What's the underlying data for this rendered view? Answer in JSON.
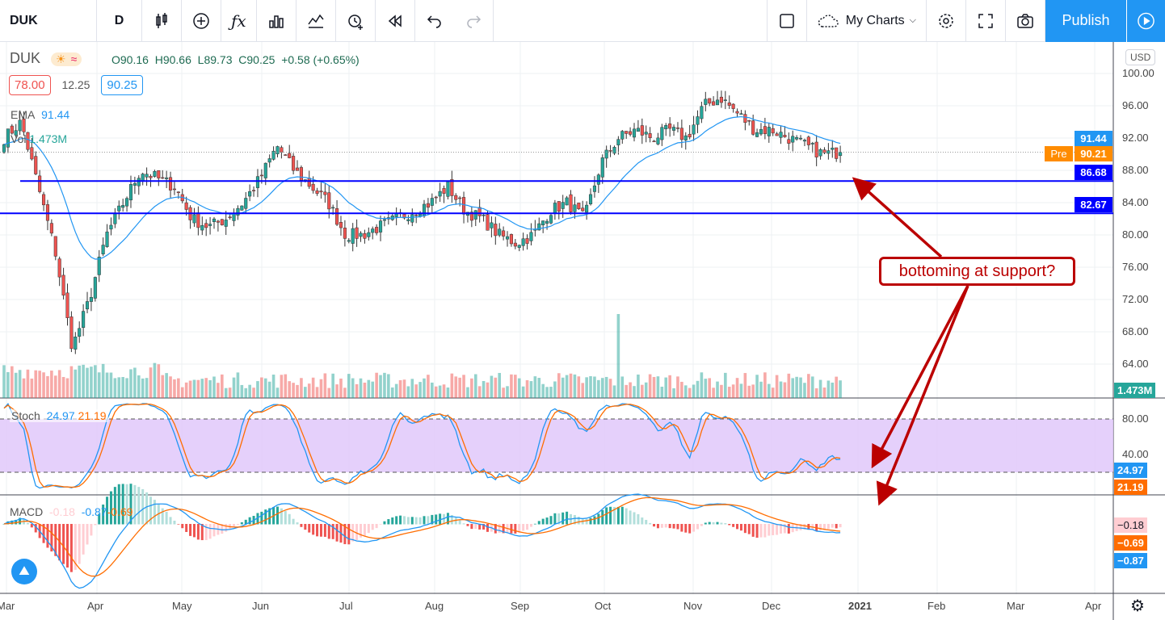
{
  "toolbar": {
    "symbol": "DUK",
    "interval": "D",
    "my_charts": "My Charts",
    "publish": "Publish",
    "icons": [
      "candles-icon",
      "add-compare-icon",
      "indicators-icon",
      "templates-icon",
      "financials-icon",
      "alert-icon",
      "replay-icon",
      "undo-icon",
      "redo-icon",
      "layout-icon",
      "cloud-icon",
      "gear-icon",
      "fullscreen-icon",
      "camera-icon",
      "play-icon"
    ]
  },
  "legend": {
    "symbol": "DUK",
    "o": "O90.16",
    "h": "H90.66",
    "l": "L89.73",
    "c": "C90.25",
    "chg": "+0.58 (+0.65%)",
    "bid": "78.00",
    "spread": "12.25",
    "ask": "90.25",
    "ema_label": "EMA",
    "ema_value": "91.44",
    "vol_label": "Vol",
    "vol_value": "1.473M"
  },
  "stoch": {
    "label": "Stoch",
    "k": "24.97",
    "d": "21.19"
  },
  "macd": {
    "label": "MACD",
    "hist": "-0.18",
    "macd": "-0.87",
    "signal": "-0.69"
  },
  "price_axis": {
    "currency": "USD",
    "ticks": [
      "100.00",
      "96.00",
      "92.00",
      "88.00",
      "84.00",
      "80.00",
      "76.00",
      "72.00",
      "68.00",
      "64.00"
    ],
    "ema_tag": "91.44",
    "pre_label": "Pre",
    "pre_tag": "90.21",
    "support1_tag": "86.68",
    "support2_tag": "82.67",
    "vol_tag": "1.473M"
  },
  "stoch_axis": {
    "ticks": [
      "80.00",
      "40.00"
    ],
    "k_tag": "24.97",
    "d_tag": "21.19"
  },
  "macd_axis": {
    "hist_tag": "−0.18",
    "signal_tag": "−0.69",
    "macd_tag": "−0.87"
  },
  "time_axis": [
    "Mar",
    "Apr",
    "May",
    "Jun",
    "Jul",
    "Aug",
    "Sep",
    "Oct",
    "Nov",
    "Dec",
    "2021",
    "Feb",
    "Mar",
    "Apr"
  ],
  "annotation": "bottoming at support?",
  "support_levels": [
    86.68,
    82.67
  ],
  "colors": {
    "up": "#26a69a",
    "down": "#ef5350",
    "ema": "#2196f3",
    "support": "#0000ff",
    "annot": "#b00000",
    "stoch_k": "#2196f3",
    "stoch_d": "#ff6d00",
    "publish": "#2196f3"
  },
  "series": {
    "weekly_close": [
      92,
      94,
      86,
      78,
      66,
      72,
      80,
      84,
      88,
      87,
      86,
      82,
      81,
      82,
      84,
      87,
      91,
      88,
      86,
      84,
      80,
      80,
      81,
      82,
      83,
      84,
      86,
      83,
      82,
      80,
      79,
      80,
      83,
      84,
      82,
      89,
      92,
      93,
      92,
      93,
      92,
      96,
      97,
      95,
      93,
      93,
      92,
      91,
      90,
      90.25
    ]
  }
}
